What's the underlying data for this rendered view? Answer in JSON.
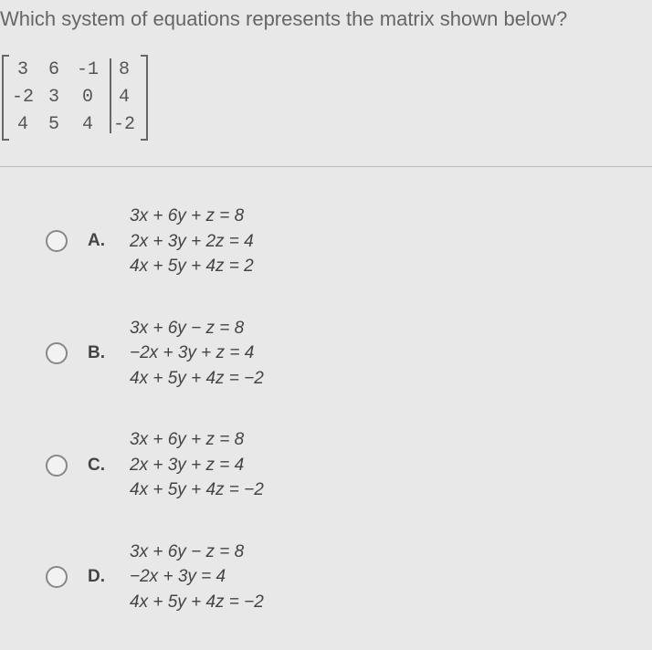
{
  "question": "Which system of equations represents the matrix shown below?",
  "matrix": {
    "rows": [
      [
        "3",
        "6",
        "-1",
        "8"
      ],
      [
        "-2",
        "3",
        "0",
        "4"
      ],
      [
        "4",
        "5",
        "4",
        "-2"
      ]
    ]
  },
  "options": [
    {
      "letter": "A.",
      "eq1": "3x + 6y + z = 8",
      "eq2": "2x + 3y + 2z = 4",
      "eq3": "4x + 5y + 4z = 2"
    },
    {
      "letter": "B.",
      "eq1": "3x + 6y − z = 8",
      "eq2": "−2x + 3y + z = 4",
      "eq3": "4x + 5y + 4z = −2"
    },
    {
      "letter": "C.",
      "eq1": "3x + 6y + z = 8",
      "eq2": "2x + 3y + z = 4",
      "eq3": "4x + 5y + 4z = −2"
    },
    {
      "letter": "D.",
      "eq1": "3x + 6y − z = 8",
      "eq2": "−2x + 3y = 4",
      "eq3": "4x + 5y + 4z = −2"
    }
  ],
  "colors": {
    "background": "#e8e8e8",
    "text": "#555",
    "divider": "#bbb",
    "radio_border": "#888"
  },
  "fonts": {
    "question_size": 22,
    "matrix_size": 20,
    "option_size": 19
  }
}
